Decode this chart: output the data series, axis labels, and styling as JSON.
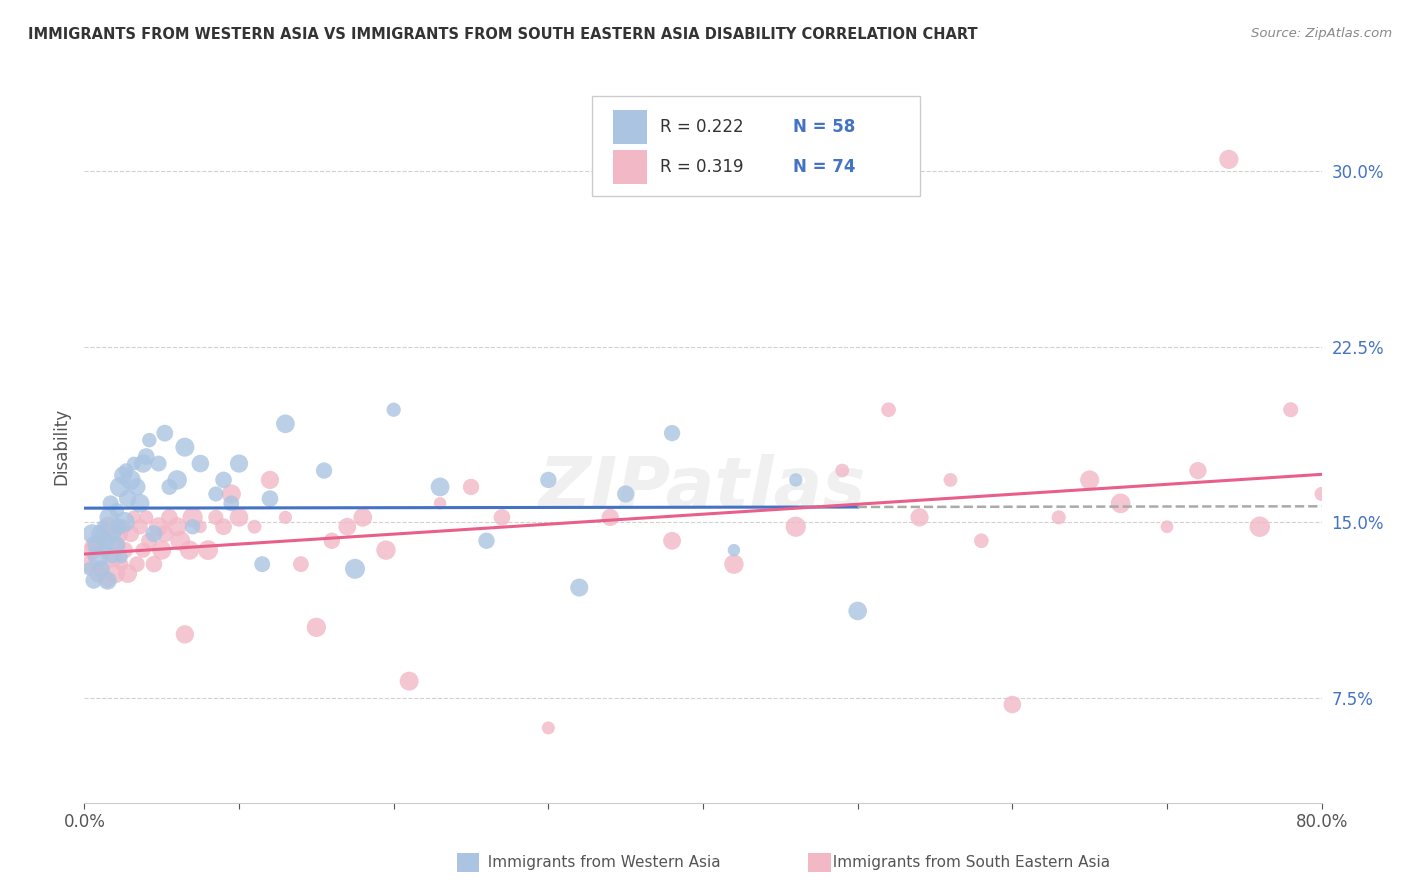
{
  "title": "IMMIGRANTS FROM WESTERN ASIA VS IMMIGRANTS FROM SOUTH EASTERN ASIA DISABILITY CORRELATION CHART",
  "source": "Source: ZipAtlas.com",
  "ylabel": "Disability",
  "xlim": [
    0.0,
    0.8
  ],
  "ylim": [
    0.03,
    0.335
  ],
  "xticks": [
    0.0,
    0.1,
    0.2,
    0.3,
    0.4,
    0.5,
    0.6,
    0.7,
    0.8
  ],
  "xticklabels": [
    "0.0%",
    "",
    "",
    "",
    "",
    "",
    "",
    "",
    "80.0%"
  ],
  "yticks": [
    0.075,
    0.15,
    0.225,
    0.3
  ],
  "yticklabels": [
    "7.5%",
    "15.0%",
    "22.5%",
    "30.0%"
  ],
  "legend1_R": "0.222",
  "legend1_N": "58",
  "legend2_R": "0.319",
  "legend2_N": "74",
  "blue_color": "#aac4e2",
  "pink_color": "#f2b8c6",
  "blue_line_color": "#4472c4",
  "pink_line_color": "#e8608a",
  "dashed_line_color": "#aaaaaa",
  "label_color": "#4472c4",
  "grid_color": "#cccccc",
  "background_color": "#ffffff",
  "title_color": "#222222",
  "source_color": "#888888",
  "watermark": "ZIPatlas",
  "blue_points_x": [
    0.003,
    0.005,
    0.006,
    0.008,
    0.009,
    0.01,
    0.011,
    0.012,
    0.013,
    0.014,
    0.015,
    0.016,
    0.017,
    0.018,
    0.019,
    0.02,
    0.021,
    0.022,
    0.023,
    0.024,
    0.025,
    0.026,
    0.027,
    0.028,
    0.03,
    0.032,
    0.034,
    0.036,
    0.038,
    0.04,
    0.042,
    0.045,
    0.048,
    0.052,
    0.055,
    0.06,
    0.065,
    0.07,
    0.075,
    0.085,
    0.09,
    0.095,
    0.1,
    0.115,
    0.12,
    0.13,
    0.155,
    0.175,
    0.2,
    0.23,
    0.26,
    0.3,
    0.32,
    0.35,
    0.38,
    0.42,
    0.46,
    0.5
  ],
  "blue_points_y": [
    0.13,
    0.145,
    0.125,
    0.14,
    0.135,
    0.145,
    0.13,
    0.148,
    0.138,
    0.142,
    0.125,
    0.152,
    0.158,
    0.135,
    0.145,
    0.14,
    0.155,
    0.148,
    0.165,
    0.135,
    0.17,
    0.15,
    0.172,
    0.16,
    0.168,
    0.175,
    0.165,
    0.158,
    0.175,
    0.178,
    0.185,
    0.145,
    0.175,
    0.188,
    0.165,
    0.168,
    0.182,
    0.148,
    0.175,
    0.162,
    0.168,
    0.158,
    0.175,
    0.132,
    0.16,
    0.192,
    0.172,
    0.13,
    0.198,
    0.165,
    0.142,
    0.168,
    0.122,
    0.162,
    0.188,
    0.138,
    0.168,
    0.112
  ],
  "pink_points_x": [
    0.003,
    0.005,
    0.007,
    0.009,
    0.01,
    0.011,
    0.013,
    0.015,
    0.016,
    0.018,
    0.02,
    0.021,
    0.022,
    0.024,
    0.025,
    0.026,
    0.028,
    0.03,
    0.032,
    0.034,
    0.036,
    0.038,
    0.04,
    0.042,
    0.045,
    0.048,
    0.05,
    0.052,
    0.055,
    0.06,
    0.062,
    0.065,
    0.068,
    0.07,
    0.075,
    0.08,
    0.085,
    0.09,
    0.095,
    0.1,
    0.11,
    0.12,
    0.13,
    0.14,
    0.15,
    0.16,
    0.17,
    0.18,
    0.195,
    0.21,
    0.23,
    0.25,
    0.27,
    0.3,
    0.34,
    0.38,
    0.42,
    0.46,
    0.49,
    0.52,
    0.54,
    0.56,
    0.58,
    0.6,
    0.63,
    0.65,
    0.67,
    0.7,
    0.72,
    0.74,
    0.76,
    0.78,
    0.8,
    0.82
  ],
  "pink_points_y": [
    0.132,
    0.138,
    0.14,
    0.128,
    0.142,
    0.13,
    0.145,
    0.125,
    0.148,
    0.135,
    0.128,
    0.14,
    0.145,
    0.132,
    0.148,
    0.138,
    0.128,
    0.145,
    0.152,
    0.132,
    0.148,
    0.138,
    0.152,
    0.142,
    0.132,
    0.148,
    0.138,
    0.145,
    0.152,
    0.148,
    0.142,
    0.102,
    0.138,
    0.152,
    0.148,
    0.138,
    0.152,
    0.148,
    0.162,
    0.152,
    0.148,
    0.168,
    0.152,
    0.132,
    0.105,
    0.142,
    0.148,
    0.152,
    0.138,
    0.082,
    0.158,
    0.165,
    0.152,
    0.062,
    0.152,
    0.142,
    0.132,
    0.148,
    0.172,
    0.198,
    0.152,
    0.168,
    0.142,
    0.072,
    0.152,
    0.168,
    0.158,
    0.148,
    0.172,
    0.305,
    0.148,
    0.198,
    0.162,
    0.165
  ]
}
